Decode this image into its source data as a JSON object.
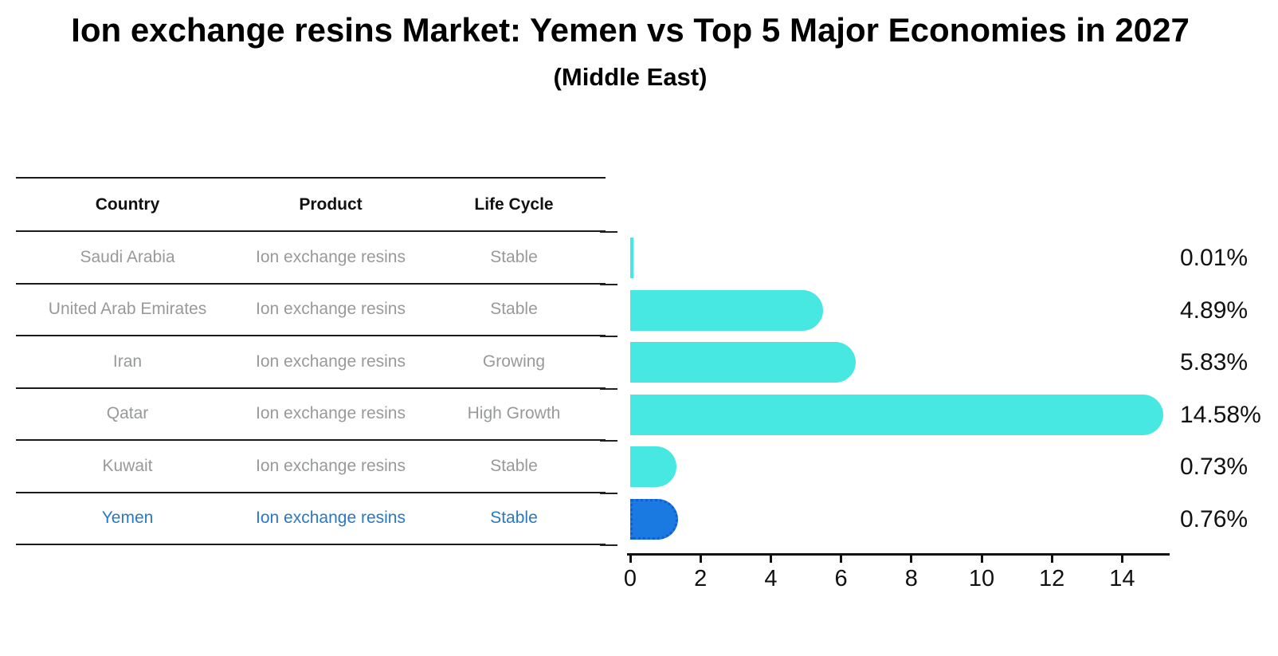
{
  "chart_data": {
    "type": "bar",
    "orientation": "horizontal",
    "title": "Ion exchange resins Market: Yemen vs Top 5 Major Economies in 2027",
    "subtitle": "(Middle East)",
    "categories": [
      "Saudi Arabia",
      "United Arab Emirates",
      "Iran",
      "Qatar",
      "Kuwait",
      "Yemen"
    ],
    "values": [
      0.01,
      4.89,
      5.83,
      14.58,
      0.73,
      0.76
    ],
    "value_labels": [
      "0.01%",
      "4.89%",
      "5.83%",
      "14.58%",
      "0.73%",
      "0.76%"
    ],
    "x_ticks": [
      0,
      2,
      4,
      6,
      8,
      10,
      12,
      14
    ],
    "xlim": [
      0,
      15.3
    ],
    "grid": false,
    "legend": "none",
    "highlight_category": "Yemen",
    "bar_color": "#47e8e2",
    "highlight_bar_color": "#1b7ae1",
    "highlight_border_color": "#0d5fd6",
    "axis_color": "#111111",
    "highlight_text_color": "#2878c6",
    "table_text_color": "#97999b"
  },
  "table": {
    "headers": [
      "Country",
      "Product",
      "Life Cycle"
    ],
    "rows": [
      {
        "country": "Saudi Arabia",
        "product": "Ion exchange resins",
        "life_cycle": "Stable"
      },
      {
        "country": "United Arab Emirates",
        "product": "Ion exchange resins",
        "life_cycle": "Stable"
      },
      {
        "country": "Iran",
        "product": "Ion exchange resins",
        "life_cycle": "Growing"
      },
      {
        "country": "Qatar",
        "product": "Ion exchange resins",
        "life_cycle": "High Growth"
      },
      {
        "country": "Kuwait",
        "product": "Ion exchange resins",
        "life_cycle": "Stable"
      },
      {
        "country": "Yemen",
        "product": "Ion exchange resins",
        "life_cycle": "Stable"
      }
    ]
  }
}
